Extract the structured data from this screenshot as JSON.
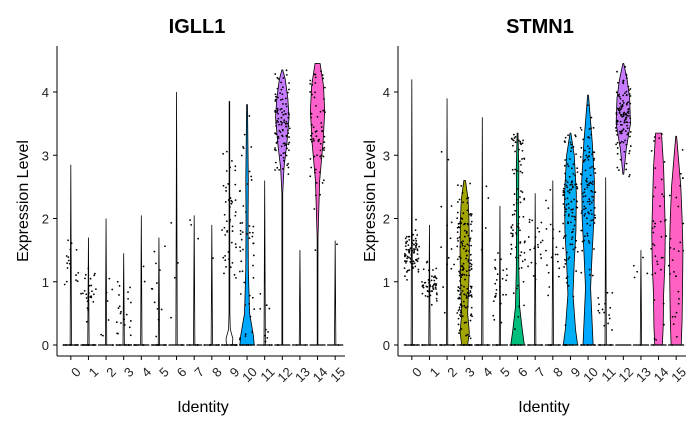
{
  "chart_data": [
    {
      "type": "violin",
      "title": "IGLL1",
      "xlabel": "Identity",
      "ylabel": "Expression Level",
      "categories": [
        "0",
        "1",
        "2",
        "3",
        "4",
        "5",
        "6",
        "7",
        "8",
        "9",
        "10",
        "11",
        "12",
        "13",
        "14",
        "15"
      ],
      "yticks": [
        0,
        1,
        2,
        3,
        4
      ],
      "ylim": [
        0,
        4.55
      ],
      "grid": false,
      "violins": [
        {
          "cat": "0",
          "max": 2.85,
          "shape": [
            [
              0,
              0.08
            ]
          ],
          "cluster": [
            1.4,
            0.25
          ],
          "n": 25,
          "frac_zero": 0.45
        },
        {
          "cat": "1",
          "max": 1.7,
          "shape": [
            [
              0,
              0.08
            ]
          ],
          "cluster": [
            0.85,
            0.2
          ],
          "n": 40,
          "frac_zero": 0.3
        },
        {
          "cat": "2",
          "max": 2.0,
          "shape": [
            [
              0,
              0.08
            ]
          ],
          "cluster": [
            0.6,
            0.3
          ],
          "n": 8,
          "frac_zero": 0.6
        },
        {
          "cat": "3",
          "max": 1.45,
          "shape": [
            [
              0,
              0.08
            ]
          ],
          "cluster": [
            0.55,
            0.3
          ],
          "n": 30,
          "frac_zero": 0.3
        },
        {
          "cat": "4",
          "max": 2.05,
          "shape": [
            [
              0,
              0.08
            ]
          ],
          "cluster": [
            0.9,
            0.4
          ],
          "n": 8,
          "frac_zero": 0.6
        },
        {
          "cat": "5",
          "max": 1.7,
          "shape": [
            [
              0,
              0.08
            ]
          ],
          "cluster": [
            0.8,
            0.35
          ],
          "n": 20,
          "frac_zero": 0.4
        },
        {
          "cat": "6",
          "max": 4.0,
          "shape": [
            [
              0,
              0.08
            ]
          ],
          "cluster": [
            1.2,
            0.5
          ],
          "n": 6,
          "frac_zero": 0.6
        },
        {
          "cat": "7",
          "max": 2.05,
          "shape": [
            [
              0,
              0.08
            ]
          ],
          "cluster": [
            1.3,
            0.5
          ],
          "n": 8,
          "frac_zero": 0.6
        },
        {
          "cat": "8",
          "max": 1.9,
          "shape": [
            [
              0,
              0.08
            ]
          ],
          "cluster": [
            1.4,
            0.4
          ],
          "n": 8,
          "frac_zero": 0.6
        },
        {
          "cat": "9",
          "max": 3.85,
          "shape": [
            [
              0,
              0.35
            ],
            [
              0.1,
              0.4
            ],
            [
              0.25,
              0.1
            ],
            [
              0.5,
              0.05
            ],
            [
              3.85,
              0.03
            ]
          ],
          "cluster": [
            2.0,
            0.7
          ],
          "n": 60,
          "frac_zero": 0.2
        },
        {
          "cat": "10",
          "max": 3.8,
          "fill": "#00A9FF",
          "shape": [
            [
              0,
              0.85
            ],
            [
              0.15,
              0.75
            ],
            [
              0.5,
              0.3
            ],
            [
              1.2,
              0.15
            ],
            [
              2.0,
              0.12
            ],
            [
              2.6,
              0.15
            ],
            [
              3.2,
              0.1
            ],
            [
              3.8,
              0.05
            ]
          ],
          "cluster": [
            1.8,
            0.8
          ],
          "n": 60,
          "frac_zero": 0.15
        },
        {
          "cat": "11",
          "max": 2.6,
          "shape": [
            [
              0,
              0.08
            ]
          ],
          "cluster": [
            0.4,
            0.2
          ],
          "n": 12,
          "frac_zero": 0.4
        },
        {
          "cat": "12",
          "max": 4.35,
          "fill": "#C77CFF",
          "shape": [
            [
              0,
              0.05
            ],
            [
              2.4,
              0.05
            ],
            [
              2.8,
              0.2
            ],
            [
              3.2,
              0.55
            ],
            [
              3.6,
              0.8
            ],
            [
              3.9,
              0.65
            ],
            [
              4.2,
              0.35
            ],
            [
              4.35,
              0.05
            ]
          ],
          "cluster": [
            3.5,
            0.4
          ],
          "n": 110,
          "frac_zero": 0.02
        },
        {
          "cat": "13",
          "max": 1.5,
          "shape": [
            [
              0,
              0.08
            ]
          ],
          "cluster": [
            0.9,
            0.4
          ],
          "n": 2,
          "frac_zero": 0.7
        },
        {
          "cat": "14",
          "max": 4.45,
          "fill": "#FF61CC",
          "shape": [
            [
              0,
              0.04
            ],
            [
              1.7,
              0.05
            ],
            [
              2.6,
              0.25
            ],
            [
              3.2,
              0.65
            ],
            [
              3.7,
              0.85
            ],
            [
              4.1,
              0.7
            ],
            [
              4.45,
              0.3
            ]
          ],
          "cluster": [
            3.3,
            0.6
          ],
          "n": 70,
          "frac_zero": 0.03
        },
        {
          "cat": "15",
          "max": 1.65,
          "shape": [
            [
              0,
              0.08
            ]
          ],
          "cluster": [
            1.0,
            0.4
          ],
          "n": 2,
          "frac_zero": 0.7
        }
      ]
    },
    {
      "type": "violin",
      "title": "STMN1",
      "xlabel": "Identity",
      "ylabel": "Expression Level",
      "categories": [
        "0",
        "1",
        "2",
        "3",
        "4",
        "5",
        "6",
        "7",
        "8",
        "9",
        "10",
        "11",
        "12",
        "13",
        "14",
        "15"
      ],
      "yticks": [
        0,
        1,
        2,
        3,
        4
      ],
      "ylim": [
        0,
        4.55
      ],
      "grid": false,
      "violins": [
        {
          "cat": "0",
          "max": 4.2,
          "shape": [
            [
              0,
              0.08
            ]
          ],
          "cluster": [
            1.45,
            0.2
          ],
          "n": 90,
          "frac_zero": 0.08
        },
        {
          "cat": "1",
          "max": 1.9,
          "shape": [
            [
              0,
              0.08
            ]
          ],
          "cluster": [
            0.9,
            0.15
          ],
          "n": 60,
          "frac_zero": 0.1
        },
        {
          "cat": "2",
          "max": 3.9,
          "shape": [
            [
              0,
              0.08
            ]
          ],
          "cluster": [
            1.6,
            0.6
          ],
          "n": 20,
          "frac_zero": 0.4
        },
        {
          "cat": "3",
          "max": 2.6,
          "fill": "#A3A500",
          "shape": [
            [
              0,
              0.35
            ],
            [
              0.2,
              0.55
            ],
            [
              0.5,
              0.35
            ],
            [
              1.0,
              0.5
            ],
            [
              1.5,
              0.55
            ],
            [
              2.0,
              0.5
            ],
            [
              2.3,
              0.4
            ],
            [
              2.6,
              0.1
            ]
          ],
          "cluster": [
            1.3,
            0.6
          ],
          "n": 180,
          "frac_zero": 0.05
        },
        {
          "cat": "4",
          "max": 3.6,
          "shape": [
            [
              0,
              0.08
            ]
          ],
          "cluster": [
            1.8,
            0.3
          ],
          "n": 10,
          "frac_zero": 0.3
        },
        {
          "cat": "5",
          "max": 2.2,
          "shape": [
            [
              0,
              0.08
            ]
          ],
          "cluster": [
            0.9,
            0.3
          ],
          "n": 30,
          "frac_zero": 0.2
        },
        {
          "cat": "6",
          "max": 3.35,
          "fill": "#00BF7D",
          "shape": [
            [
              0,
              0.8
            ],
            [
              0.25,
              0.55
            ],
            [
              0.6,
              0.25
            ],
            [
              1.2,
              0.15
            ],
            [
              2.0,
              0.12
            ],
            [
              2.8,
              0.15
            ],
            [
              3.35,
              0.05
            ]
          ],
          "cluster": [
            2.0,
            0.9
          ],
          "n": 90,
          "frac_zero": 0.1
        },
        {
          "cat": "7",
          "max": 2.4,
          "shape": [
            [
              0,
              0.08
            ]
          ],
          "cluster": [
            1.6,
            0.35
          ],
          "n": 25,
          "frac_zero": 0.2
        },
        {
          "cat": "8",
          "max": 2.6,
          "shape": [
            [
              0,
              0.08
            ]
          ],
          "cluster": [
            1.7,
            0.35
          ],
          "n": 25,
          "frac_zero": 0.2
        },
        {
          "cat": "9",
          "max": 3.35,
          "fill": "#00B0F6",
          "shape": [
            [
              0,
              0.85
            ],
            [
              0.25,
              0.6
            ],
            [
              0.8,
              0.3
            ],
            [
              1.3,
              0.45
            ],
            [
              1.8,
              0.65
            ],
            [
              2.4,
              0.7
            ],
            [
              3.0,
              0.45
            ],
            [
              3.35,
              0.05
            ]
          ],
          "cluster": [
            2.2,
            0.6
          ],
          "n": 120,
          "frac_zero": 0.05
        },
        {
          "cat": "10",
          "max": 3.95,
          "fill": "#00A9FF",
          "shape": [
            [
              0,
              0.6
            ],
            [
              0.3,
              0.5
            ],
            [
              0.9,
              0.3
            ],
            [
              1.5,
              0.5
            ],
            [
              2.0,
              0.7
            ],
            [
              2.6,
              0.75
            ],
            [
              3.2,
              0.5
            ],
            [
              3.95,
              0.05
            ]
          ],
          "cluster": [
            2.4,
            0.6
          ],
          "n": 110,
          "frac_zero": 0.05
        },
        {
          "cat": "11",
          "max": 2.65,
          "shape": [
            [
              0,
              0.08
            ]
          ],
          "cluster": [
            0.5,
            0.2
          ],
          "n": 20,
          "frac_zero": 0.3
        },
        {
          "cat": "12",
          "max": 4.45,
          "fill": "#C77CFF",
          "shape": [
            [
              2.7,
              0.05
            ],
            [
              3.1,
              0.35
            ],
            [
              3.5,
              0.85
            ],
            [
              3.9,
              0.75
            ],
            [
              4.2,
              0.45
            ],
            [
              4.45,
              0.05
            ]
          ],
          "cluster": [
            3.6,
            0.35
          ],
          "n": 120,
          "frac_zero": 0.0
        },
        {
          "cat": "13",
          "max": 1.5,
          "shape": [
            [
              0,
              0.08
            ]
          ],
          "cluster": [
            1.2,
            0.2
          ],
          "n": 6,
          "frac_zero": 0.4
        },
        {
          "cat": "14",
          "max": 3.35,
          "fill": "#FF61CC",
          "shape": [
            [
              0,
              0.45
            ],
            [
              0.3,
              0.55
            ],
            [
              0.8,
              0.6
            ],
            [
              1.3,
              0.75
            ],
            [
              1.8,
              0.8
            ],
            [
              2.3,
              0.7
            ],
            [
              2.8,
              0.6
            ],
            [
              3.35,
              0.35
            ]
          ],
          "cluster": [
            1.8,
            0.8
          ],
          "n": 40,
          "frac_zero": 0.05
        },
        {
          "cat": "15",
          "max": 3.3,
          "fill": "#FF61C3",
          "shape": [
            [
              0,
              0.6
            ],
            [
              0.4,
              0.7
            ],
            [
              0.9,
              0.75
            ],
            [
              1.5,
              0.8
            ],
            [
              2.0,
              0.7
            ],
            [
              2.5,
              0.55
            ],
            [
              2.9,
              0.3
            ],
            [
              3.3,
              0.05
            ]
          ],
          "cluster": [
            1.5,
            0.7
          ],
          "n": 30,
          "frac_zero": 0.05
        }
      ]
    }
  ]
}
